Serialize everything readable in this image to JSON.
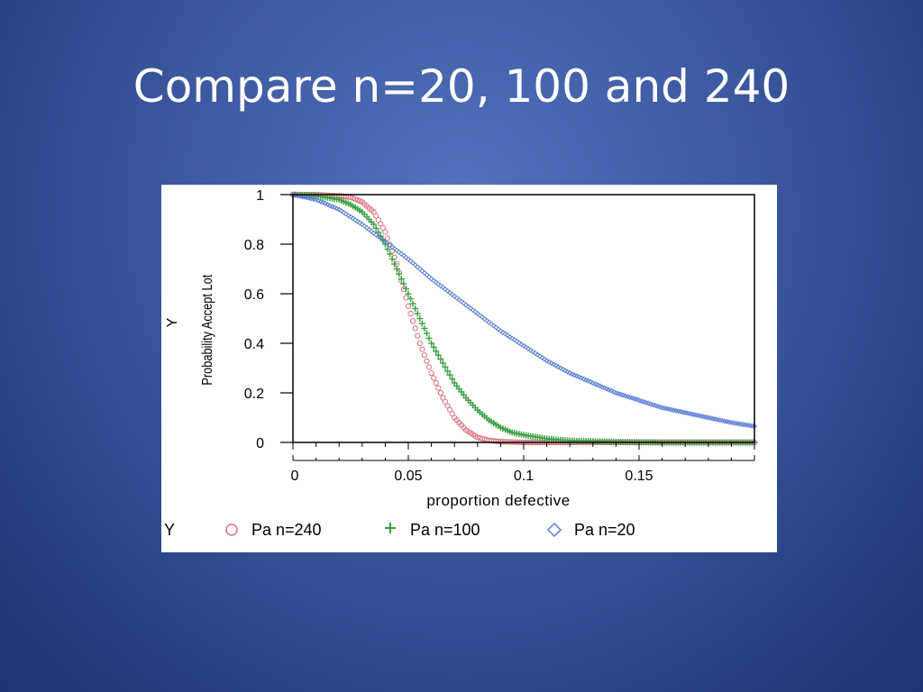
{
  "slide": {
    "title": "Compare n=20, 100 and 240"
  },
  "chart_data": {
    "type": "scatter",
    "title": "",
    "xlabel": "proportion defective",
    "ylabel": "Probability Accept Lot",
    "ylabel_var": "Y",
    "xlim": [
      0,
      0.2
    ],
    "ylim": [
      0,
      1
    ],
    "xticks": [
      0,
      0.05,
      0.1,
      0.15
    ],
    "xtick_labels": [
      "0",
      "0.05",
      "0.1",
      "0.15"
    ],
    "yticks": [
      0,
      0.2,
      0.4,
      0.6,
      0.8,
      1
    ],
    "ytick_labels": [
      "0",
      "0.2",
      "0.4",
      "0.6",
      "0.8",
      "1"
    ],
    "grid": false,
    "legend": {
      "title": "Y",
      "placement": "bottom"
    },
    "series": [
      {
        "name": "Pa n=240",
        "marker": "circle",
        "color": "#d9737b",
        "x": [
          0,
          0.01,
          0.02,
          0.025,
          0.03,
          0.035,
          0.04,
          0.045,
          0.05,
          0.055,
          0.06,
          0.065,
          0.07,
          0.075,
          0.08,
          0.085,
          0.09,
          0.1,
          0.12,
          0.15,
          0.2
        ],
        "y": [
          1,
          1,
          0.995,
          0.99,
          0.97,
          0.93,
          0.85,
          0.72,
          0.55,
          0.4,
          0.28,
          0.18,
          0.1,
          0.05,
          0.02,
          0.008,
          0.003,
          0,
          0,
          0,
          0
        ]
      },
      {
        "name": "Pa n=100",
        "marker": "plus",
        "color": "#3aa042",
        "x": [
          0,
          0.01,
          0.02,
          0.025,
          0.03,
          0.035,
          0.04,
          0.045,
          0.05,
          0.055,
          0.06,
          0.065,
          0.07,
          0.075,
          0.08,
          0.085,
          0.09,
          0.095,
          0.1,
          0.11,
          0.12,
          0.14,
          0.16,
          0.2
        ],
        "y": [
          1,
          0.995,
          0.98,
          0.96,
          0.93,
          0.88,
          0.8,
          0.7,
          0.6,
          0.5,
          0.4,
          0.32,
          0.24,
          0.18,
          0.13,
          0.09,
          0.06,
          0.04,
          0.03,
          0.015,
          0.007,
          0.002,
          0,
          0
        ]
      },
      {
        "name": "Pa n=20",
        "marker": "diamond",
        "color": "#5b7fd3",
        "x": [
          0,
          0.01,
          0.02,
          0.03,
          0.04,
          0.05,
          0.06,
          0.07,
          0.08,
          0.09,
          0.1,
          0.11,
          0.12,
          0.13,
          0.14,
          0.15,
          0.16,
          0.17,
          0.18,
          0.19,
          0.2
        ],
        "y": [
          1,
          0.98,
          0.94,
          0.88,
          0.81,
          0.74,
          0.66,
          0.59,
          0.52,
          0.45,
          0.39,
          0.33,
          0.28,
          0.24,
          0.2,
          0.17,
          0.14,
          0.12,
          0.1,
          0.08,
          0.065
        ]
      }
    ]
  }
}
